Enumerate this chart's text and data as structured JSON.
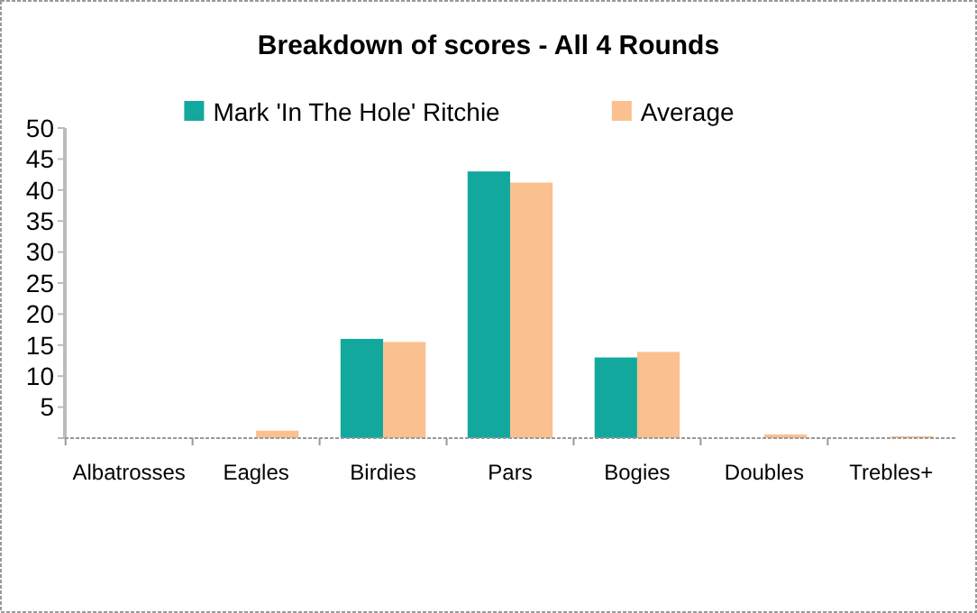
{
  "chart_data": {
    "type": "bar",
    "title": "Breakdown of scores - All 4 Rounds",
    "categories": [
      "Albatrosses",
      "Eagles",
      "Birdies",
      "Pars",
      "Bogies",
      "Doubles",
      "Trebles+"
    ],
    "series": [
      {
        "name": "Mark 'In The Hole' Ritchie",
        "color": "#13a89e",
        "values": [
          0,
          0,
          16,
          43,
          13,
          0,
          0
        ]
      },
      {
        "name": "Average",
        "color": "#fac08f",
        "values": [
          0,
          1.2,
          15.5,
          41.2,
          13.9,
          0.6,
          0.3
        ]
      }
    ],
    "ylim": [
      0,
      50
    ],
    "yticks": [
      {
        "value": 0,
        "label": null
      },
      5,
      10,
      15,
      20,
      25,
      30,
      35,
      40,
      45,
      50
    ],
    "grid": false,
    "legend": "top"
  }
}
